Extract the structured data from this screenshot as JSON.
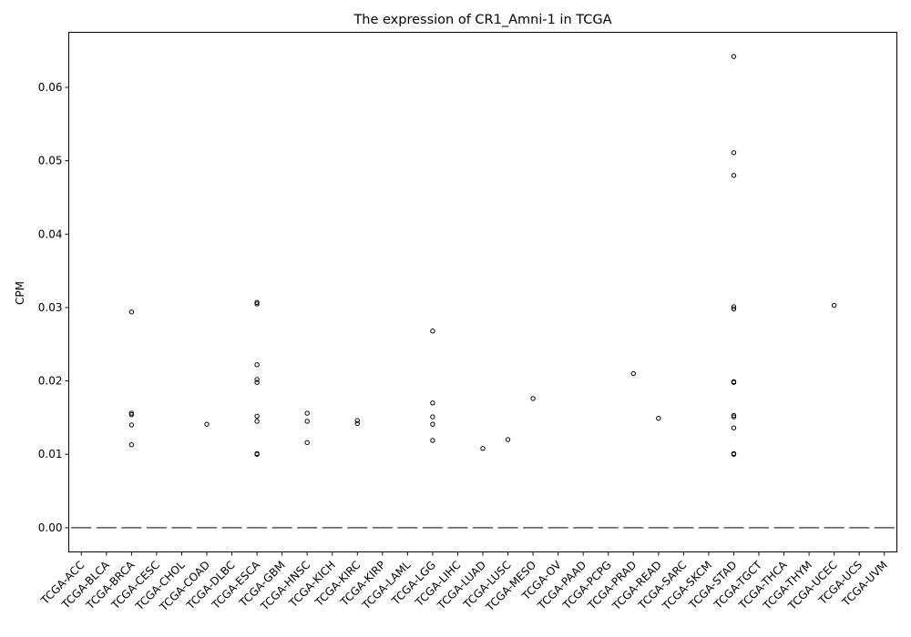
{
  "chart_data": {
    "type": "box",
    "title": "The expression of CR1_Amni-1 in TCGA",
    "xlabel": "",
    "ylabel": "CPM",
    "ylim": [
      -0.0033,
      0.0675
    ],
    "yticks": [
      0.0,
      0.01,
      0.02,
      0.03,
      0.04,
      0.05,
      0.06
    ],
    "ytick_labels": [
      "0.00",
      "0.01",
      "0.02",
      "0.03",
      "0.04",
      "0.05",
      "0.06"
    ],
    "grid": false,
    "legend": "none",
    "box_color": "#555555",
    "categories": [
      "TCGA-ACC",
      "TCGA-BLCA",
      "TCGA-BRCA",
      "TCGA-CESC",
      "TCGA-CHOL",
      "TCGA-COAD",
      "TCGA-DLBC",
      "TCGA-ESCA",
      "TCGA-GBM",
      "TCGA-HNSC",
      "TCGA-KICH",
      "TCGA-KIRC",
      "TCGA-KIRP",
      "TCGA-LAML",
      "TCGA-LGG",
      "TCGA-LIHC",
      "TCGA-LUAD",
      "TCGA-LUSC",
      "TCGA-MESO",
      "TCGA-OV",
      "TCGA-PAAD",
      "TCGA-PCPG",
      "TCGA-PRAD",
      "TCGA-READ",
      "TCGA-SARC",
      "TCGA-SKCM",
      "TCGA-STAD",
      "TCGA-TGCT",
      "TCGA-THCA",
      "TCGA-THYM",
      "TCGA-UCEC",
      "TCGA-UCS",
      "TCGA-UVM"
    ],
    "median": [
      0,
      0,
      0,
      0,
      0,
      0,
      0,
      0,
      0,
      0,
      0,
      0,
      0,
      0,
      0,
      0,
      0,
      0,
      0,
      0,
      0,
      0,
      0,
      0,
      0,
      0,
      0,
      0,
      0,
      0,
      0,
      0,
      0
    ],
    "outliers": [
      [],
      [],
      [
        0.0294,
        0.0156,
        0.0154,
        0.014,
        0.0113
      ],
      [],
      [],
      [
        0.0141
      ],
      [],
      [
        0.0307,
        0.0305,
        0.0222,
        0.0202,
        0.0198,
        0.0152,
        0.0145,
        0.0101,
        0.01
      ],
      [],
      [
        0.0156,
        0.0145,
        0.0116
      ],
      [],
      [
        0.0146,
        0.0142
      ],
      [],
      [],
      [
        0.0268,
        0.017,
        0.0151,
        0.0141,
        0.0119
      ],
      [],
      [
        0.0108
      ],
      [
        0.012
      ],
      [
        0.0176
      ],
      [],
      [],
      [],
      [
        0.021
      ],
      [
        0.0149
      ],
      [],
      [],
      [
        0.0642,
        0.0511,
        0.048,
        0.0301,
        0.0298,
        0.0199,
        0.0198,
        0.0153,
        0.0151,
        0.0136,
        0.0101,
        0.01
      ],
      [],
      [],
      [],
      [
        0.0303
      ],
      [],
      []
    ]
  }
}
